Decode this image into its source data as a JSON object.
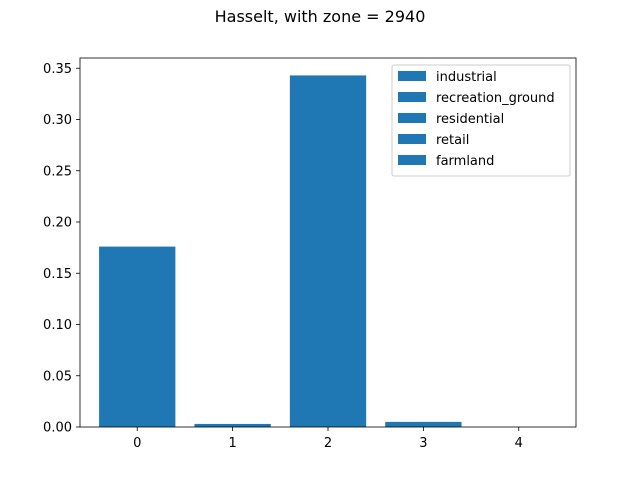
{
  "chart_data": {
    "type": "bar",
    "title": "Hasselt, with zone = 2940",
    "xlabel": "",
    "ylabel": "",
    "categories": [
      "0",
      "1",
      "2",
      "3",
      "4"
    ],
    "values": [
      0.176,
      0.003,
      0.343,
      0.005,
      0.0
    ],
    "ylim": [
      0,
      0.36
    ],
    "yticks": [
      "0.00",
      "0.05",
      "0.10",
      "0.15",
      "0.20",
      "0.25",
      "0.30",
      "0.35"
    ],
    "grid": false,
    "legend_placement": "upper right",
    "legend": [
      "industrial",
      "recreation_ground",
      "residential",
      "retail",
      "farmland"
    ],
    "bar_color": "#1f77b4"
  }
}
